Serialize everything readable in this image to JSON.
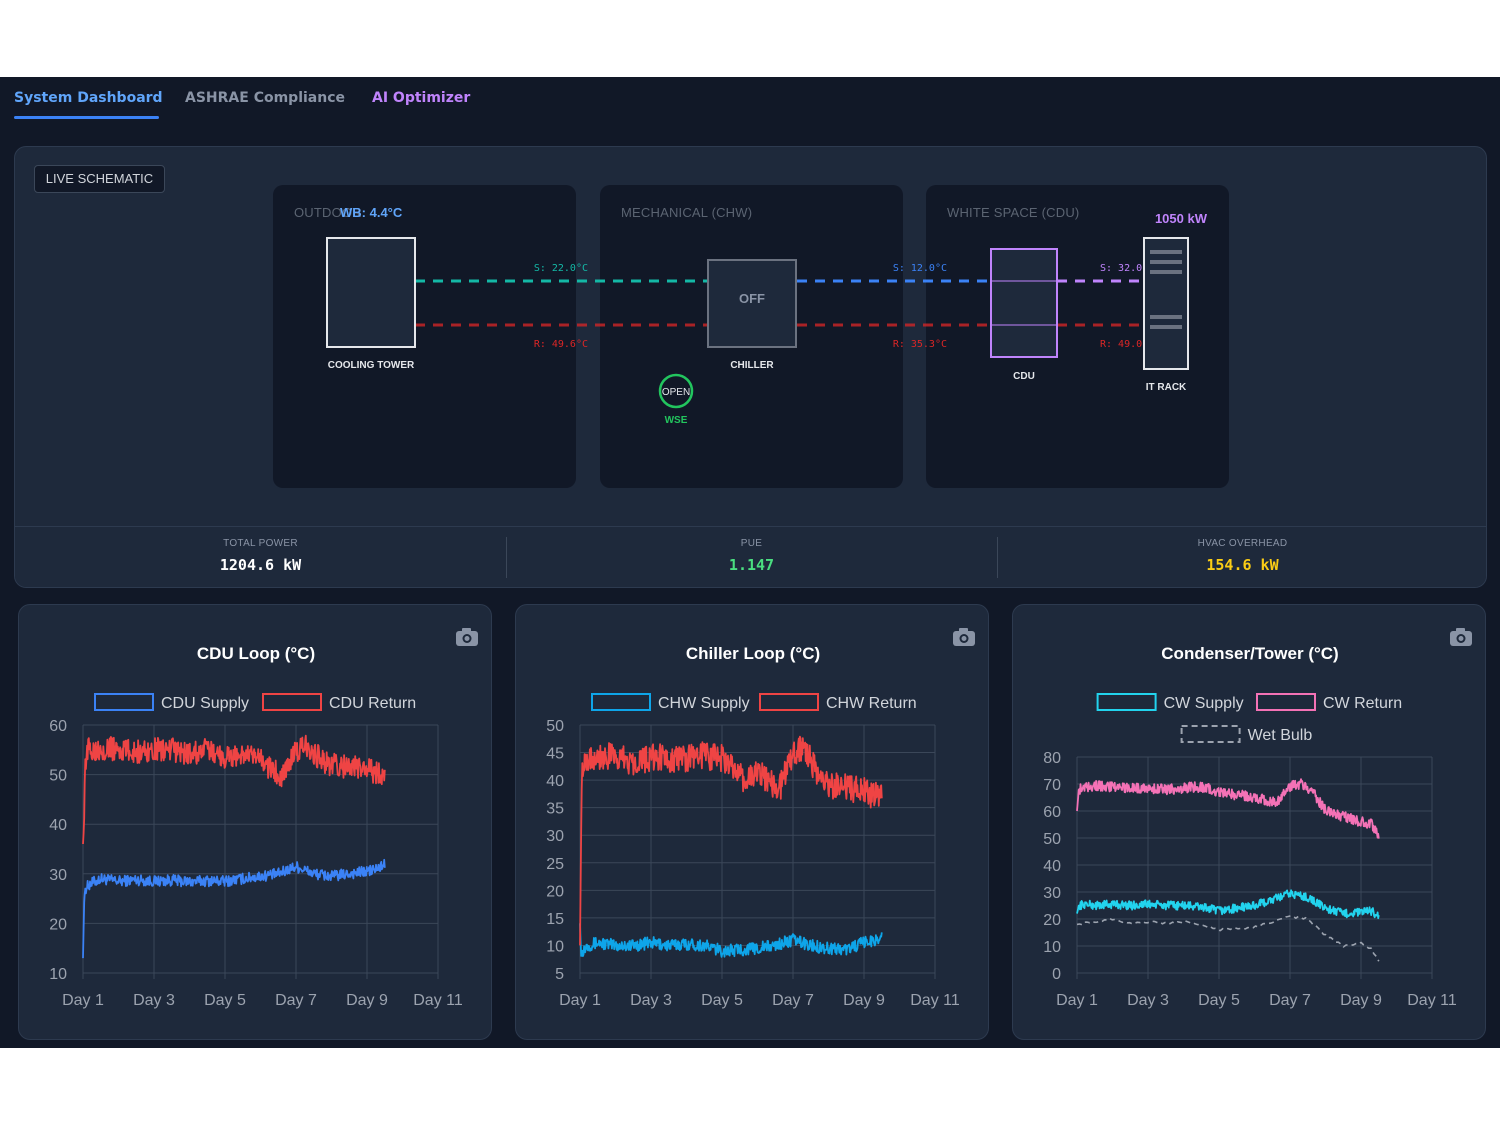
{
  "tabs": [
    {
      "label": "System Dashboard",
      "active": true
    },
    {
      "label": "ASHRAE Compliance",
      "active": false
    },
    {
      "label": "AI Optimizer",
      "active": false
    }
  ],
  "schematic": {
    "badge": "LIVE SCHEMATIC",
    "zones": {
      "outdoor": {
        "label": "OUTDOOR",
        "wet_bulb": "WB: 4.4°C"
      },
      "mechanical": {
        "label": "MECHANICAL (CHW)"
      },
      "white_space": {
        "label": "WHITE SPACE (CDU)",
        "rack_power": "1050 kW"
      }
    },
    "equipment": {
      "cooling_tower": "COOLING TOWER",
      "chiller": "CHILLER",
      "chiller_state": "OFF",
      "wse": "WSE",
      "wse_state": "OPEN",
      "cdu": "CDU",
      "it_rack": "IT RACK"
    },
    "pipes": {
      "cw_supply": "S: 22.0°C",
      "cw_return": "R: 49.6°C",
      "chw_supply": "S: 12.0°C",
      "chw_return": "R: 35.3°C",
      "tcs_supply": "S: 32.0°C",
      "tcs_return": "R: 49.0°C"
    },
    "colors": {
      "cw": "#14b8a6",
      "chw": "#3b82f6",
      "tcs": "#c084fc",
      "return": "#dc2626",
      "wse": "#22c55e"
    }
  },
  "metrics": [
    {
      "label": "TOTAL POWER",
      "value": "1204.6 kW",
      "color": "#ffffff"
    },
    {
      "label": "PUE",
      "value": "1.147",
      "color": "#4ade80"
    },
    {
      "label": "HVAC OVERHEAD",
      "value": "154.6 kW",
      "color": "#facc15"
    }
  ],
  "chart_data": [
    {
      "type": "line",
      "title": "CDU Loop (°C)",
      "x_ticks": [
        "Day 1",
        "Day 3",
        "Day 5",
        "Day 7",
        "Day 9",
        "Day 11"
      ],
      "xlim": [
        1,
        11
      ],
      "ylim": [
        10,
        60
      ],
      "y_ticks": [
        10,
        20,
        30,
        40,
        50,
        60
      ],
      "grid": true,
      "legend": "top",
      "series": [
        {
          "name": "CDU Supply",
          "color": "#3b82f6",
          "noise": 0.7,
          "x": [
            1,
            1.03,
            1.06,
            1.2,
            1.5,
            2,
            2.5,
            3,
            3.5,
            4,
            4.5,
            5,
            5.5,
            6,
            6.5,
            7,
            7.5,
            8,
            8.5,
            9,
            9.3,
            9.5
          ],
          "y": [
            13,
            24,
            27,
            28,
            29,
            28.5,
            28.8,
            28.5,
            28.7,
            28.4,
            28.6,
            28.5,
            29,
            29.5,
            30,
            31.5,
            30,
            29.5,
            30,
            30.5,
            31,
            32
          ]
        },
        {
          "name": "CDU Return",
          "color": "#ef4444",
          "noise": 1.5,
          "x": [
            1,
            1.03,
            1.06,
            1.15,
            1.5,
            2,
            2.5,
            3,
            3.5,
            4,
            4.5,
            5,
            5.5,
            6,
            6.3,
            6.6,
            7,
            7.3,
            7.7,
            8,
            8.5,
            9,
            9.3,
            9.5
          ],
          "y": [
            36,
            40,
            53,
            55,
            55.5,
            55,
            54.5,
            55,
            55,
            54,
            55,
            53.5,
            54,
            53,
            51,
            50,
            54.5,
            56,
            53,
            52,
            51.5,
            51,
            50.5,
            50
          ]
        }
      ]
    },
    {
      "type": "line",
      "title": "Chiller Loop (°C)",
      "x_ticks": [
        "Day 1",
        "Day 3",
        "Day 5",
        "Day 7",
        "Day 9",
        "Day 11"
      ],
      "xlim": [
        1,
        11
      ],
      "ylim": [
        5,
        50
      ],
      "y_ticks": [
        5,
        10,
        15,
        20,
        25,
        30,
        35,
        40,
        45,
        50
      ],
      "grid": true,
      "legend": "top",
      "series": [
        {
          "name": "CHW Supply",
          "color": "#0ea5e9",
          "noise": 0.7,
          "x": [
            1,
            1.03,
            1.06,
            1.2,
            1.5,
            2,
            2.5,
            3,
            3.5,
            4,
            4.5,
            5,
            5.5,
            6,
            6.5,
            7,
            7.5,
            8,
            8.5,
            9,
            9.3,
            9.5
          ],
          "y": [
            14,
            8,
            9,
            10,
            10.5,
            10,
            10,
            10.5,
            10,
            10.3,
            10,
            9,
            9.2,
            9.5,
            10,
            11,
            10,
            9.5,
            9.3,
            10.5,
            11,
            11.5
          ]
        },
        {
          "name": "CHW Return",
          "color": "#ef4444",
          "noise": 1.6,
          "x": [
            1,
            1.03,
            1.06,
            1.15,
            1.5,
            2,
            2.5,
            3,
            3.5,
            4,
            4.5,
            5,
            5.3,
            5.6,
            6,
            6.3,
            6.6,
            7,
            7.3,
            7.7,
            8,
            8.5,
            9,
            9.3,
            9.5
          ],
          "y": [
            10,
            30,
            43,
            44,
            44.5,
            44,
            43.5,
            44,
            44,
            44,
            44.5,
            44,
            42,
            40,
            41,
            40.5,
            38,
            45,
            46,
            41,
            39,
            38.5,
            38,
            37,
            37
          ]
        }
      ]
    },
    {
      "type": "line",
      "title": "Condenser/Tower (°C)",
      "x_ticks": [
        "Day 1",
        "Day 3",
        "Day 5",
        "Day 7",
        "Day 9",
        "Day 11"
      ],
      "xlim": [
        1,
        11
      ],
      "ylim": [
        0,
        80
      ],
      "y_ticks": [
        0,
        10,
        20,
        30,
        40,
        50,
        60,
        70,
        80
      ],
      "grid": true,
      "legend": "top",
      "series": [
        {
          "name": "CW Supply",
          "color": "#22d3ee",
          "noise": 1.0,
          "x": [
            1,
            1.05,
            1.2,
            1.5,
            2,
            2.5,
            3,
            3.5,
            4,
            4.5,
            5,
            5.5,
            6,
            6.5,
            7,
            7.5,
            8,
            8.5,
            9,
            9.3,
            9.5
          ],
          "y": [
            22,
            25,
            25.5,
            25,
            25.5,
            25,
            25.5,
            25,
            25,
            24.5,
            23,
            24,
            25,
            27,
            29.5,
            28,
            24,
            22,
            22.5,
            23,
            21
          ]
        },
        {
          "name": "CW Return",
          "color": "#f472b6",
          "noise": 1.2,
          "x": [
            1,
            1.05,
            1.2,
            1.5,
            2,
            2.5,
            3,
            3.5,
            4,
            4.5,
            5,
            5.5,
            6,
            6.3,
            6.6,
            7,
            7.3,
            7.7,
            8,
            8.5,
            9,
            9.3,
            9.5
          ],
          "y": [
            60,
            68,
            69,
            69.5,
            69,
            68.5,
            68.5,
            68,
            68.5,
            69,
            67,
            66,
            65,
            64,
            63,
            69,
            70,
            66,
            60,
            58,
            56,
            55,
            51
          ]
        },
        {
          "name": "Wet Bulb",
          "color": "#9ca3af",
          "dashed": true,
          "noise": 0.4,
          "x": [
            1,
            1.5,
            2,
            2.5,
            3,
            3.5,
            4,
            4.5,
            5,
            5.5,
            6,
            6.5,
            7,
            7.5,
            8,
            8.5,
            9,
            9.3,
            9.5
          ],
          "y": [
            18,
            19,
            20,
            18.5,
            19,
            18.5,
            19,
            18,
            16,
            16.5,
            17,
            19,
            21,
            20,
            14,
            10,
            11,
            9,
            4
          ]
        }
      ]
    }
  ]
}
